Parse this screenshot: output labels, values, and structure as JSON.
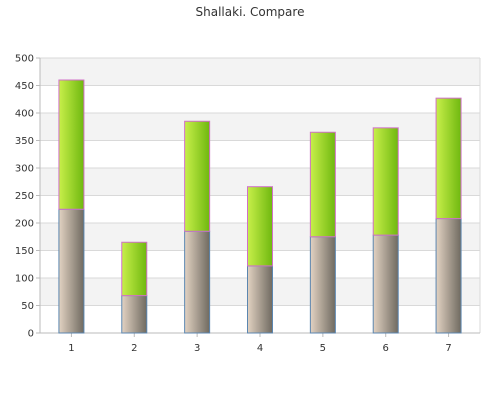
{
  "chart_data": {
    "type": "bar",
    "stacked": true,
    "title": "Shallaki. Compare",
    "xlabel": "",
    "ylabel": "",
    "categories": [
      "1",
      "2",
      "3",
      "4",
      "5",
      "6",
      "7"
    ],
    "series": [
      {
        "values": [
          225,
          68,
          185,
          122,
          175,
          178,
          208
        ]
      },
      {
        "values": [
          235,
          97,
          200,
          144,
          190,
          195,
          219
        ]
      }
    ],
    "ylim": [
      0,
      500
    ],
    "yticks": [
      0,
      50,
      100,
      150,
      200,
      250,
      300,
      350,
      400,
      450,
      500
    ],
    "grid": true,
    "legend": "none",
    "colors": {
      "lower_light": "#e2d2c2",
      "lower_dark": "#6f6a60",
      "lower_edge": "#5b86b0",
      "upper_light": "#c8ef4a",
      "upper_dark": "#6fb80f",
      "upper_edge": "#d070c8",
      "band": "#f3f3f3",
      "grid": "#d9d9d9",
      "axis": "#bbbbbb",
      "text": "#333333"
    }
  }
}
